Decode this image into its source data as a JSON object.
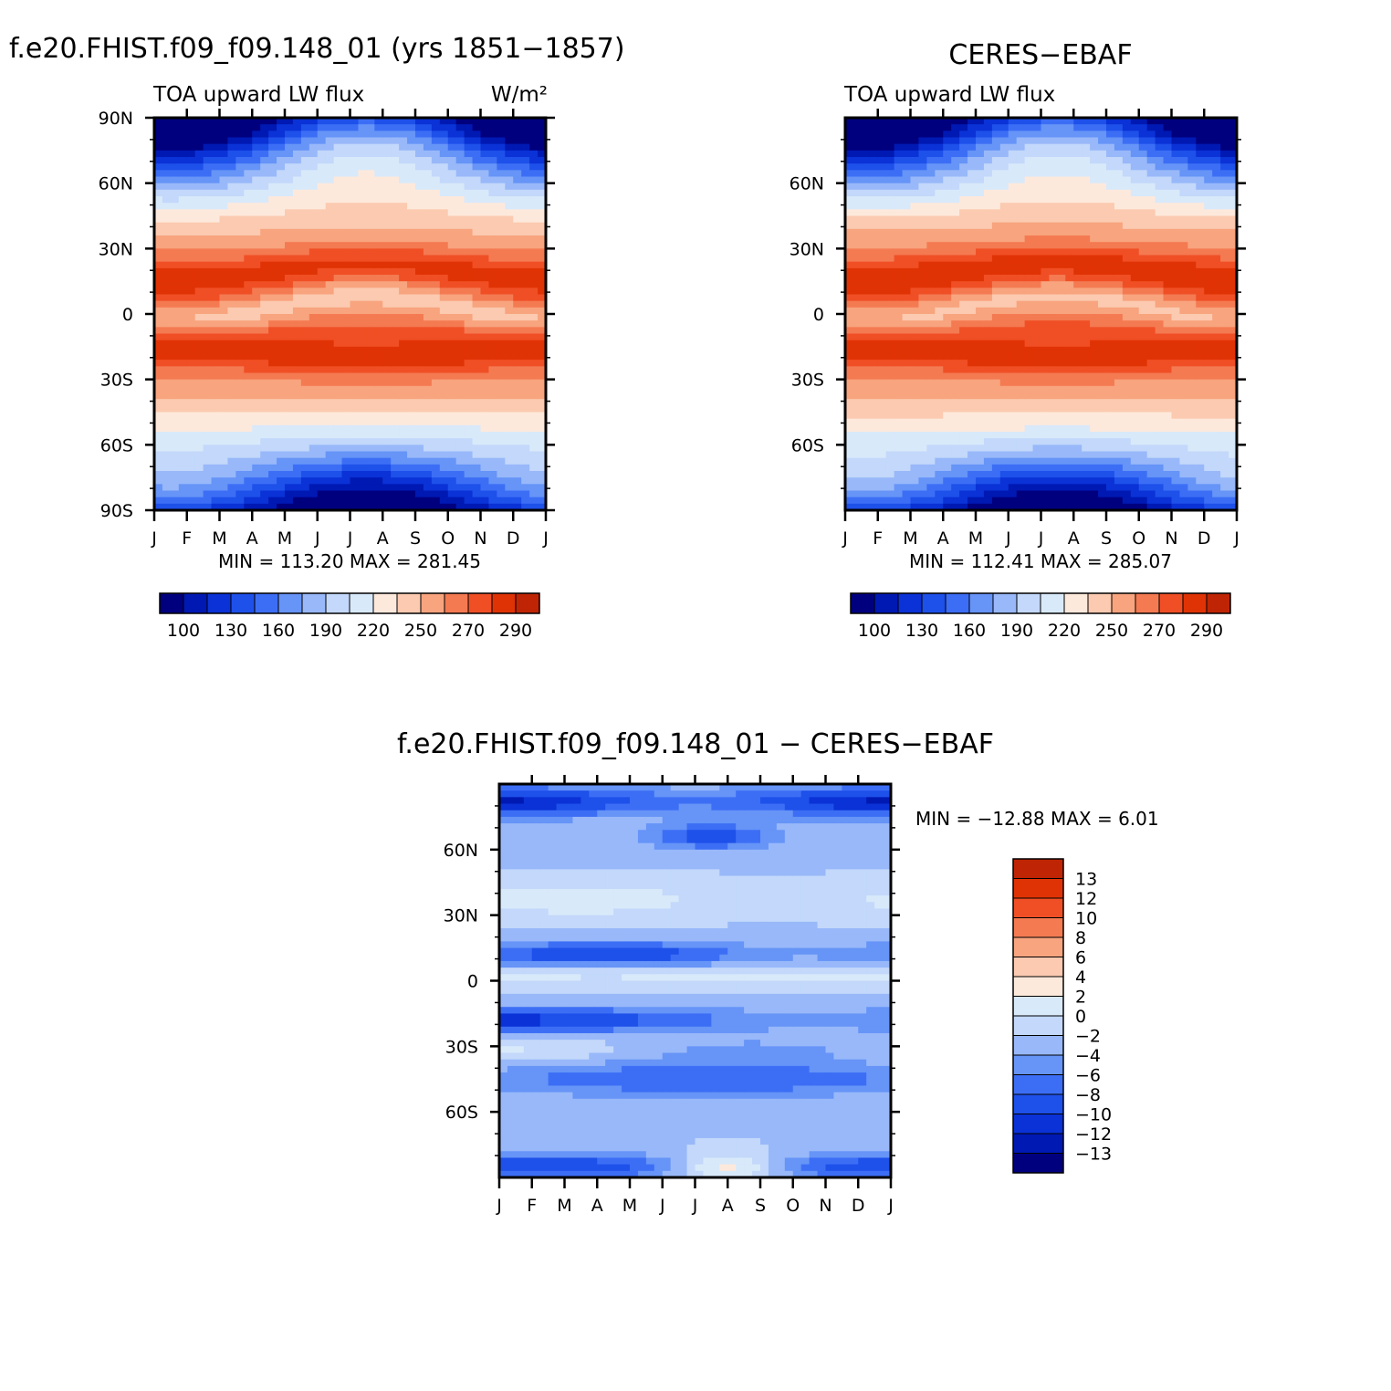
{
  "colors": {
    "abs_levels": [
      "#00007f",
      "#0019b3",
      "#0a32d6",
      "#1e50ea",
      "#3c6ef5",
      "#6694f7",
      "#98b8f9",
      "#c3d8fa",
      "#d8e9fa",
      "#fde9dc",
      "#fbcab0",
      "#f8a47e",
      "#f47a52",
      "#f04f25",
      "#e03305",
      "#bf2504",
      "#7f0000"
    ],
    "diff_levels": [
      "#00007f",
      "#0019b3",
      "#0a32d6",
      "#1e50ea",
      "#3c6ef5",
      "#6694f7",
      "#98b8f9",
      "#c3d8fa",
      "#d8e9fa",
      "#fde9dc",
      "#fbcab0",
      "#f8a47e",
      "#f47a52",
      "#f04f25",
      "#e03305",
      "#bf2504",
      "#7f0000"
    ]
  },
  "chart_data": [
    {
      "id": "model",
      "type": "heatmap",
      "title": "f.e20.FHIST.f09_f09.148_01 (yrs 1851−1857)",
      "left_label": "TOA upward LW flux",
      "right_label": "W/m²",
      "x_ticks": [
        "J",
        "F",
        "M",
        "A",
        "M",
        "J",
        "J",
        "A",
        "S",
        "O",
        "N",
        "D",
        "J"
      ],
      "y_ticks": [
        {
          "value": 90,
          "label": "90N"
        },
        {
          "value": 60,
          "label": "60N"
        },
        {
          "value": 30,
          "label": "30N"
        },
        {
          "value": 0,
          "label": "0"
        },
        {
          "value": -30,
          "label": "30S"
        },
        {
          "value": -60,
          "label": "60S"
        },
        {
          "value": -90,
          "label": "90S"
        }
      ],
      "ylim": [
        -90,
        90
      ],
      "minmax": "MIN = 113.20  MAX = 281.45",
      "colorbar_labels": [
        "100",
        "130",
        "160",
        "190",
        "220",
        "250",
        "270",
        "290"
      ],
      "levels_min": 100,
      "levels_max": 300
    },
    {
      "id": "obs",
      "type": "heatmap",
      "title": "CERES−EBAF",
      "left_label": "TOA upward LW flux",
      "right_label": "",
      "x_ticks": [
        "J",
        "F",
        "M",
        "A",
        "M",
        "J",
        "J",
        "A",
        "S",
        "O",
        "N",
        "D",
        "J"
      ],
      "y_ticks": [
        {
          "value": 60,
          "label": "60N"
        },
        {
          "value": 30,
          "label": "30N"
        },
        {
          "value": 0,
          "label": "0"
        },
        {
          "value": -30,
          "label": "30S"
        },
        {
          "value": -60,
          "label": "60S"
        }
      ],
      "ylim": [
        -90,
        90
      ],
      "minmax": "MIN = 112.41  MAX = 285.07",
      "colorbar_labels": [
        "100",
        "130",
        "160",
        "190",
        "220",
        "250",
        "270",
        "290"
      ],
      "levels_min": 100,
      "levels_max": 300
    },
    {
      "id": "diff",
      "type": "heatmap",
      "title": "f.e20.FHIST.f09_f09.148_01  −  CERES−EBAF",
      "x_ticks": [
        "J",
        "F",
        "M",
        "A",
        "M",
        "J",
        "J",
        "A",
        "S",
        "O",
        "N",
        "D",
        "J"
      ],
      "y_ticks": [
        {
          "value": 60,
          "label": "60N"
        },
        {
          "value": 30,
          "label": "30N"
        },
        {
          "value": 0,
          "label": "0"
        },
        {
          "value": -30,
          "label": "30S"
        },
        {
          "value": -60,
          "label": "60S"
        }
      ],
      "ylim": [
        -90,
        90
      ],
      "minmax": "MIN = −12.88  MAX =     6.01",
      "colorbar_labels": [
        "13",
        "12",
        "10",
        "8",
        "6",
        "4",
        "2",
        "0",
        "−2",
        "−4",
        "−6",
        "−8",
        "−10",
        "−12",
        "−13"
      ],
      "levels_min": -14,
      "levels_max": 14
    }
  ]
}
